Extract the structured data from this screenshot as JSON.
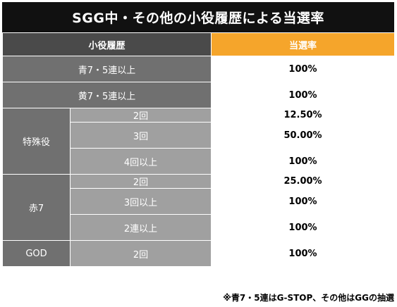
{
  "title": "SGG中・その他の小役履歴による当選率",
  "table": {
    "headers": [
      "小役履歴",
      "当選率"
    ],
    "simple_rows": [
      {
        "label": "青7・5連以上",
        "rate": "100%"
      },
      {
        "label": "黄7・5連以上",
        "rate": "100%"
      }
    ],
    "groups": [
      {
        "label": "特殊役",
        "rows": [
          {
            "label": "2回",
            "rate": "12.50%"
          },
          {
            "label": "3回",
            "rate": "50.00%"
          },
          {
            "label": "4回以上",
            "rate": "100%"
          }
        ]
      },
      {
        "label": "赤7",
        "rows": [
          {
            "label": "2回",
            "rate": "25.00%"
          },
          {
            "label": "3回以上",
            "rate": "100%"
          },
          {
            "label": "2連以上",
            "rate": "100%"
          }
        ]
      },
      {
        "label": "GOD",
        "rows": [
          {
            "label": "2回",
            "rate": "100%"
          }
        ]
      }
    ]
  },
  "colors": {
    "title_bg": "#111111",
    "header_left_bg": "#4a4a4a",
    "header_right_bg": "#f5a52b",
    "group_bg": "#707070",
    "sub_bg": "#a0a0a0"
  },
  "footnote": "※青7・5連はG-STOP、その他はGGの抽選"
}
